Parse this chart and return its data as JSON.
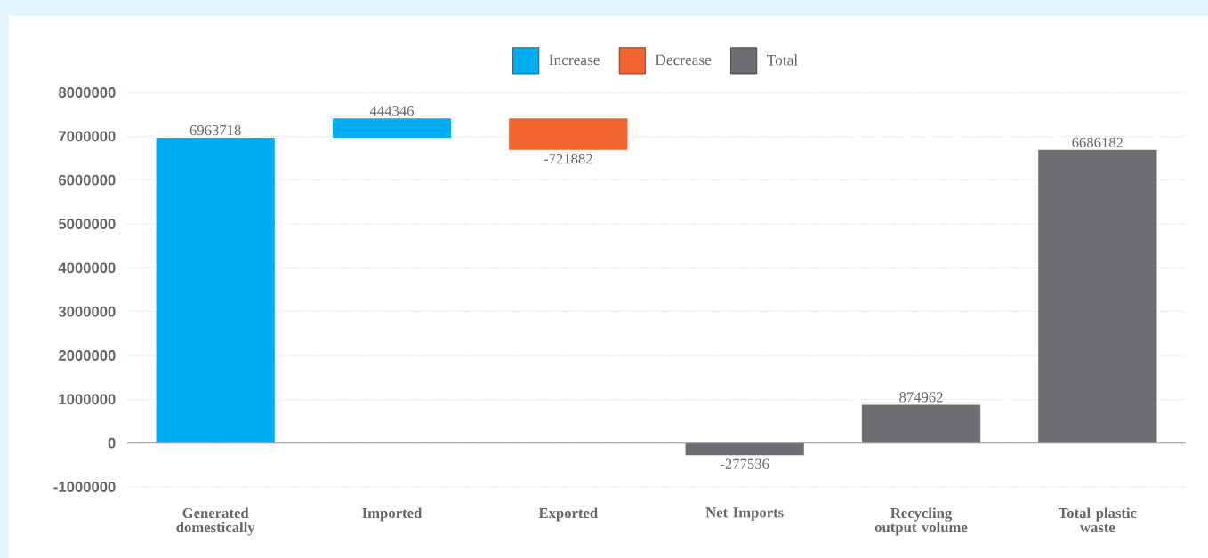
{
  "chart_data": {
    "type": "bar",
    "categories": [
      "Generated domestically",
      "Imported",
      "Exported",
      "Net Imports",
      "Recycling output volume",
      "Total plastic waste"
    ],
    "series": [
      {
        "name": "Increase",
        "color": "#00aeef",
        "values": [
          6963718,
          444346,
          null,
          null,
          null,
          null
        ],
        "base": [
          0,
          6963718,
          null,
          null,
          null,
          null
        ]
      },
      {
        "name": "Decrease",
        "color": "#f26531",
        "values": [
          null,
          null,
          -721882,
          null,
          null,
          null
        ],
        "base": [
          null,
          null,
          7408064,
          null,
          null,
          null
        ]
      },
      {
        "name": "Total",
        "color": "#6d6e71",
        "values": [
          null,
          null,
          null,
          -277536,
          874962,
          6686182
        ],
        "base": [
          null,
          null,
          null,
          0,
          0,
          0
        ]
      }
    ],
    "ylim": [
      -1000000,
      8000000
    ],
    "yticks": [
      -1000000,
      0,
      1000000,
      2000000,
      3000000,
      4000000,
      5000000,
      6000000,
      7000000,
      8000000
    ],
    "grid": "y",
    "legend": "top",
    "data_labels": true
  }
}
